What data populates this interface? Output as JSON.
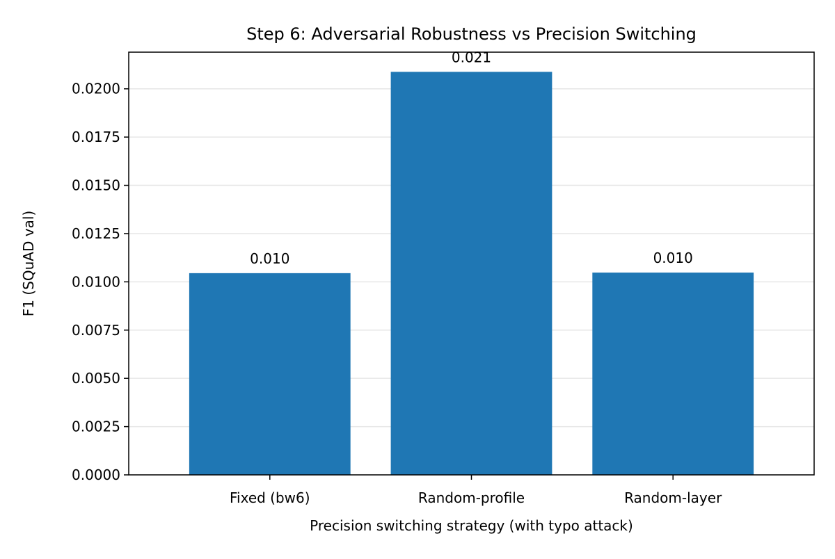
{
  "chart_data": {
    "type": "bar",
    "title": "Step 6: Adversarial Robustness vs Precision Switching",
    "xlabel": "Precision switching strategy (with typo attack)",
    "ylabel": "F1 (SQuAD val)",
    "categories": [
      "Fixed (bw6)",
      "Random-profile",
      "Random-layer"
    ],
    "values": [
      0.01045,
      0.02088,
      0.01048
    ],
    "data_labels": [
      "0.010",
      "0.021",
      "0.010"
    ],
    "ylim": [
      0,
      0.0219
    ],
    "yticks": [
      0.0,
      0.0025,
      0.005,
      0.0075,
      0.01,
      0.0125,
      0.015,
      0.0175,
      0.02
    ],
    "ytick_labels": [
      "0.0000",
      "0.0025",
      "0.0050",
      "0.0075",
      "0.0100",
      "0.0125",
      "0.0150",
      "0.0175",
      "0.0200"
    ],
    "grid": "y-axis",
    "legend": "none",
    "bar_color": "#1f77b4",
    "grid_color": "#e6e6e6"
  }
}
